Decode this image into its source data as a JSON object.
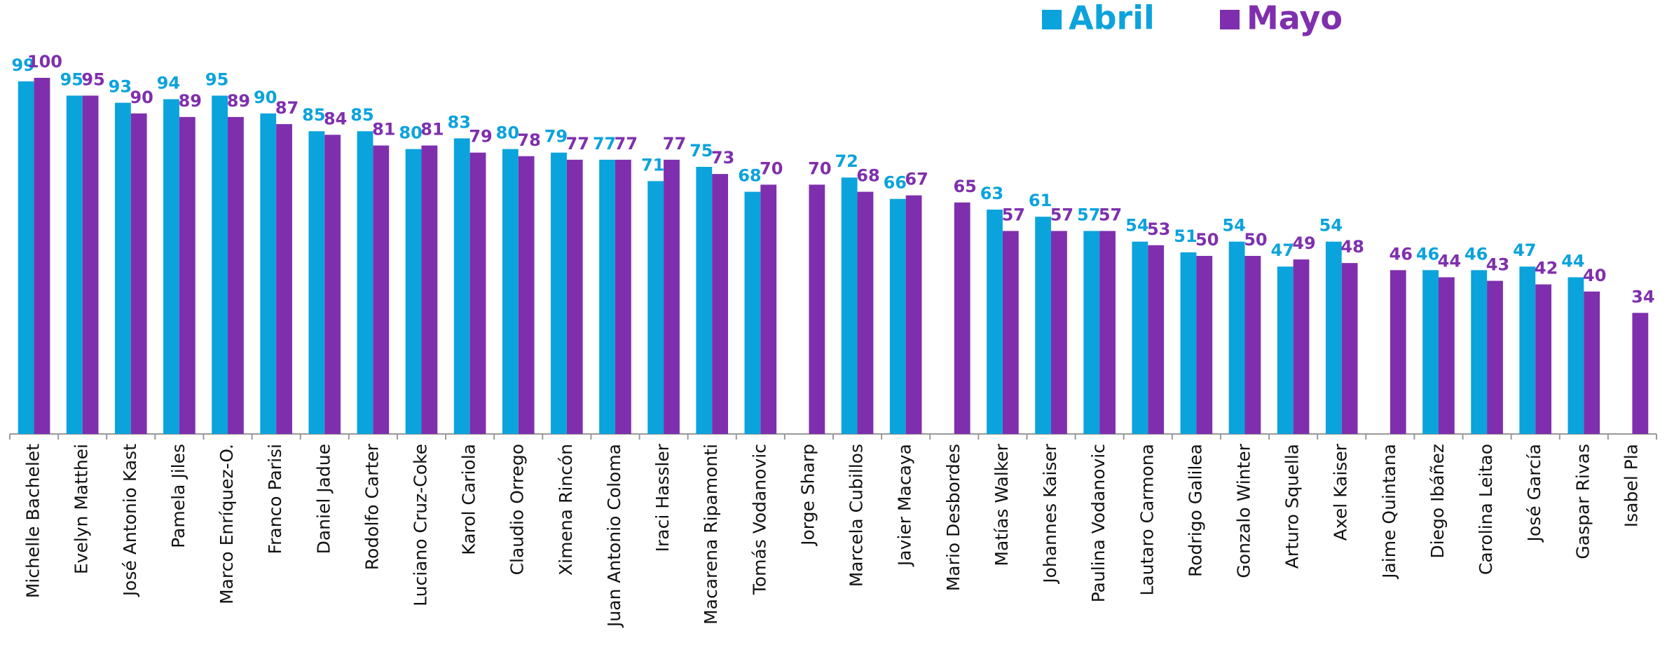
{
  "chart_data": {
    "type": "bar",
    "categories": [
      "Michelle Bachelet",
      "Evelyn Matthei",
      "José Antonio Kast",
      "Pamela Jiles",
      "Marco Enríquez-O.",
      "Franco Parisi",
      "Daniel Jadue",
      "Rodolfo Carter",
      "Luciano Cruz-Coke",
      "Karol Cariola",
      "Claudio Orrego",
      "Ximena Rincón",
      "Juan Antonio Coloma",
      "Iraci Hassler",
      "Macarena Ripamonti",
      "Tomás Vodanovic",
      "Jorge Sharp",
      "Marcela Cubillos",
      "Javier Macaya",
      "Mario Desbordes",
      "Matías Walker",
      "Johannes Kaiser",
      "Paulina Vodanovic",
      "Lautaro Carmona",
      "Rodrigo Galilea",
      "Gonzalo Winter",
      "Arturo Squella",
      "Axel Kaiser",
      "Jaime Quintana",
      "Diego Ibáñez",
      "Carolina Leitao",
      "José García",
      "Gaspar Rivas",
      "Isabel Pla"
    ],
    "series": [
      {
        "name": "Abril",
        "color": "#0ba3dc",
        "values": [
          99,
          95,
          93,
          94,
          95,
          90,
          85,
          85,
          80,
          83,
          80,
          79,
          77,
          71,
          75,
          68,
          null,
          72,
          66,
          null,
          63,
          61,
          57,
          54,
          51,
          54,
          47,
          54,
          null,
          46,
          46,
          47,
          44,
          null
        ]
      },
      {
        "name": "Mayo",
        "color": "#7f2fad",
        "values": [
          100,
          95,
          90,
          89,
          89,
          87,
          84,
          81,
          81,
          79,
          78,
          77,
          77,
          77,
          73,
          70,
          70,
          68,
          67,
          65,
          57,
          57,
          57,
          53,
          50,
          50,
          49,
          48,
          46,
          44,
          43,
          42,
          40,
          34
        ]
      }
    ],
    "ylim": [
      0,
      100
    ],
    "legend": "top"
  }
}
